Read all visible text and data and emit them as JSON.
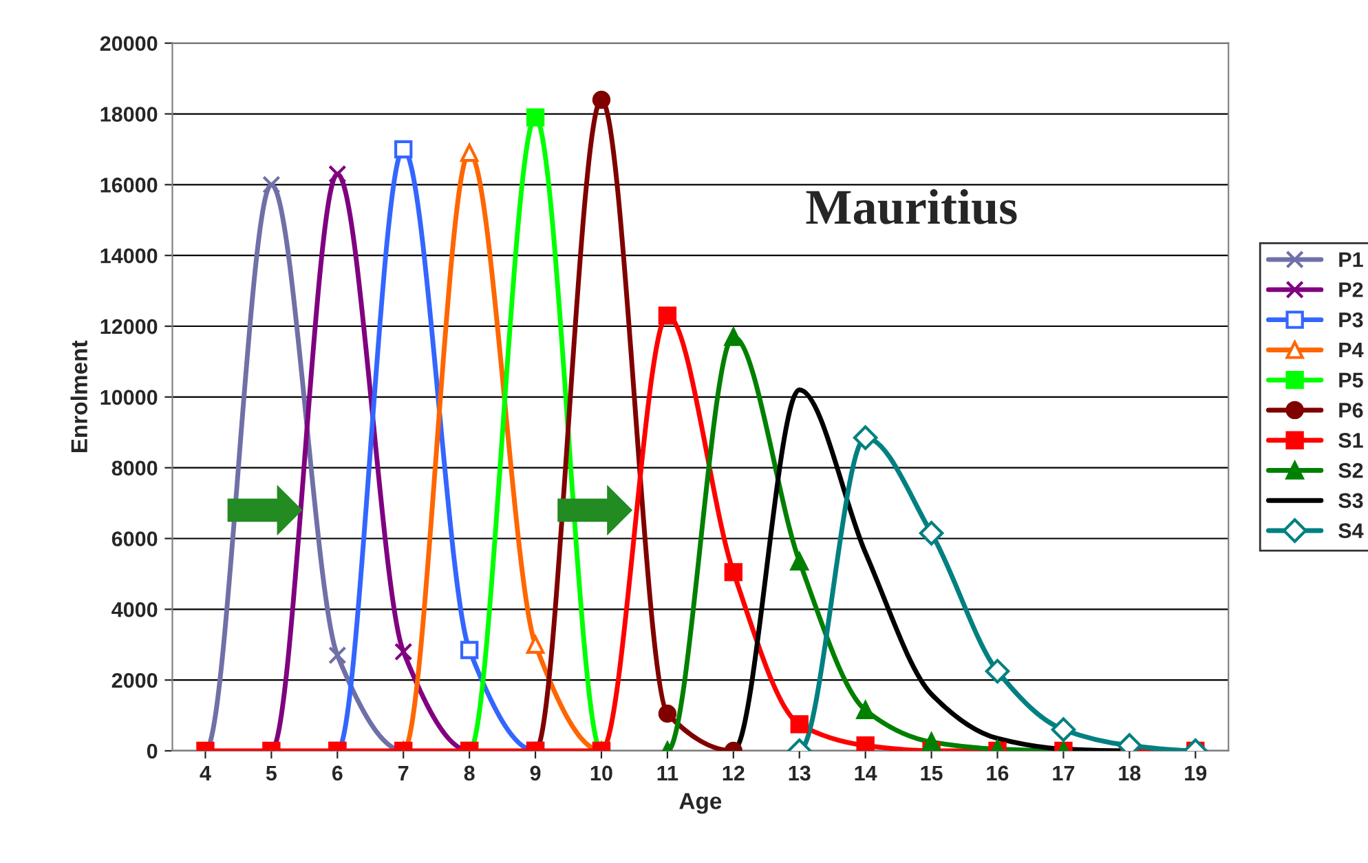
{
  "chart_data": {
    "type": "line",
    "title": "Mauritius",
    "xlabel": "Age",
    "ylabel": "Enrolment",
    "categories": [
      "4",
      "5",
      "6",
      "7",
      "8",
      "9",
      "10",
      "11",
      "12",
      "13",
      "14",
      "15",
      "16",
      "17",
      "18",
      "19"
    ],
    "ylim": [
      0,
      20000
    ],
    "yticks": [
      0,
      2000,
      4000,
      6000,
      8000,
      10000,
      12000,
      14000,
      16000,
      18000,
      20000
    ],
    "grid": "y",
    "legend": "right",
    "line_style": "solid",
    "series": [
      {
        "name": "P1",
        "color": "#7070a8",
        "marker": "cross",
        "values": [
          0,
          16000,
          2700,
          0,
          null,
          null,
          null,
          null,
          null,
          null,
          null,
          null,
          null,
          null,
          null,
          null
        ]
      },
      {
        "name": "P2",
        "color": "#800080",
        "marker": "cross",
        "values": [
          null,
          0,
          16300,
          2800,
          0,
          null,
          null,
          null,
          null,
          null,
          null,
          null,
          null,
          null,
          null,
          null
        ]
      },
      {
        "name": "P3",
        "color": "#3366ff",
        "marker": "square",
        "values": [
          null,
          null,
          0,
          17000,
          2850,
          0,
          null,
          null,
          null,
          null,
          null,
          null,
          null,
          null,
          null,
          null
        ]
      },
      {
        "name": "P4",
        "color": "#ff6600",
        "marker": "triangle",
        "values": [
          null,
          null,
          null,
          0,
          16900,
          3000,
          0,
          null,
          null,
          null,
          null,
          null,
          null,
          null,
          null,
          null
        ]
      },
      {
        "name": "P5",
        "color": "#00ff00",
        "marker": "square",
        "values": [
          null,
          null,
          null,
          null,
          0,
          17900,
          0,
          null,
          null,
          null,
          null,
          null,
          null,
          null,
          null,
          null
        ]
      },
      {
        "name": "P6",
        "color": "#800000",
        "marker": "circle",
        "values": [
          null,
          null,
          null,
          null,
          null,
          0,
          18400,
          1050,
          0,
          null,
          null,
          null,
          null,
          null,
          null,
          null
        ]
      },
      {
        "name": "S1",
        "color": "#ff0000",
        "marker": "square",
        "values": [
          0,
          0,
          0,
          0,
          0,
          0,
          0,
          12300,
          5050,
          750,
          150,
          0,
          0,
          0,
          0,
          0
        ]
      },
      {
        "name": "S2",
        "color": "#008000",
        "marker": "triangle",
        "values": [
          null,
          null,
          null,
          null,
          null,
          null,
          null,
          0,
          11700,
          5350,
          1150,
          250,
          50,
          0,
          null,
          null
        ]
      },
      {
        "name": "S3",
        "color": "#000000",
        "marker": "none",
        "values": [
          null,
          null,
          null,
          null,
          null,
          null,
          null,
          null,
          0,
          10200,
          5600,
          1600,
          350,
          50,
          0,
          null
        ]
      },
      {
        "name": "S4",
        "color": "#008080",
        "marker": "diamond",
        "values": [
          null,
          null,
          null,
          null,
          null,
          null,
          null,
          null,
          null,
          0,
          8850,
          6150,
          2250,
          600,
          150,
          0
        ]
      }
    ]
  }
}
